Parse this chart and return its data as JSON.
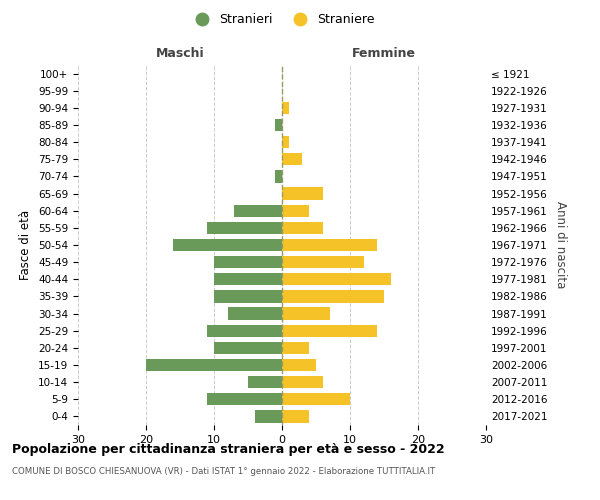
{
  "age_groups": [
    "0-4",
    "5-9",
    "10-14",
    "15-19",
    "20-24",
    "25-29",
    "30-34",
    "35-39",
    "40-44",
    "45-49",
    "50-54",
    "55-59",
    "60-64",
    "65-69",
    "70-74",
    "75-79",
    "80-84",
    "85-89",
    "90-94",
    "95-99",
    "100+"
  ],
  "birth_years": [
    "2017-2021",
    "2012-2016",
    "2007-2011",
    "2002-2006",
    "1997-2001",
    "1992-1996",
    "1987-1991",
    "1982-1986",
    "1977-1981",
    "1972-1976",
    "1967-1971",
    "1962-1966",
    "1957-1961",
    "1952-1956",
    "1947-1951",
    "1942-1946",
    "1937-1941",
    "1932-1936",
    "1927-1931",
    "1922-1926",
    "≤ 1921"
  ],
  "males": [
    4,
    11,
    5,
    20,
    10,
    11,
    8,
    10,
    10,
    10,
    16,
    11,
    7,
    0,
    1,
    0,
    0,
    1,
    0,
    0,
    0
  ],
  "females": [
    4,
    10,
    6,
    5,
    4,
    14,
    7,
    15,
    16,
    12,
    14,
    6,
    4,
    6,
    0,
    3,
    1,
    0,
    1,
    0,
    0
  ],
  "male_color": "#6a9a5a",
  "female_color": "#f5c327",
  "background_color": "#ffffff",
  "grid_color": "#cccccc",
  "title": "Popolazione per cittadinanza straniera per età e sesso - 2022",
  "subtitle": "COMUNE DI BOSCO CHIESANUOVA (VR) - Dati ISTAT 1° gennaio 2022 - Elaborazione TUTTITALIA.IT",
  "xlabel_left": "Maschi",
  "xlabel_right": "Femmine",
  "ylabel_left": "Fasce di età",
  "ylabel_right": "Anni di nascita",
  "legend_male": "Stranieri",
  "legend_female": "Straniere",
  "xlim": 30,
  "bar_height": 0.72
}
